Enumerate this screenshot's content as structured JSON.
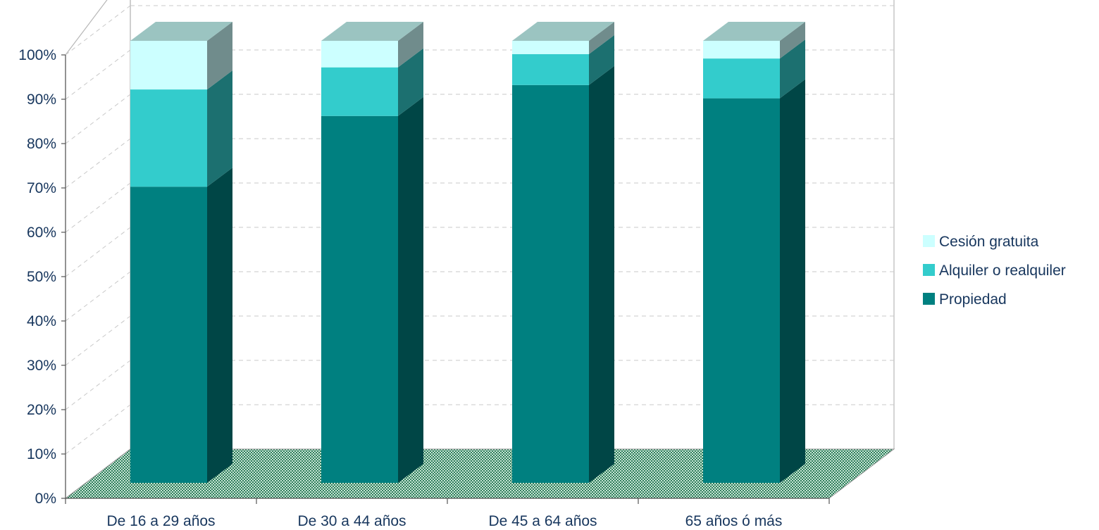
{
  "chart_data": {
    "type": "bar",
    "stacked": true,
    "percent_stacked": true,
    "three_d": true,
    "categories": [
      "De 16 a 29 años",
      "De 30 a 44 años",
      "De 45 a 64 años",
      "65 años ó más"
    ],
    "series": [
      {
        "name": "Propiedad",
        "values": [
          67,
          83,
          90,
          87
        ],
        "color": "#008080"
      },
      {
        "name": "Alquiler o realquiler",
        "values": [
          22,
          11,
          7,
          9
        ],
        "color": "#33cccc"
      },
      {
        "name": "Cesión gratuita",
        "values": [
          11,
          6,
          3,
          4
        ],
        "color": "#ccffff"
      }
    ],
    "y_ticks": [
      "0%",
      "10%",
      "20%",
      "30%",
      "40%",
      "50%",
      "60%",
      "70%",
      "80%",
      "90%",
      "100%"
    ],
    "ylim": [
      0,
      100
    ],
    "grid": true,
    "legend_position": "right",
    "title": "",
    "xlabel": "",
    "ylabel": ""
  }
}
